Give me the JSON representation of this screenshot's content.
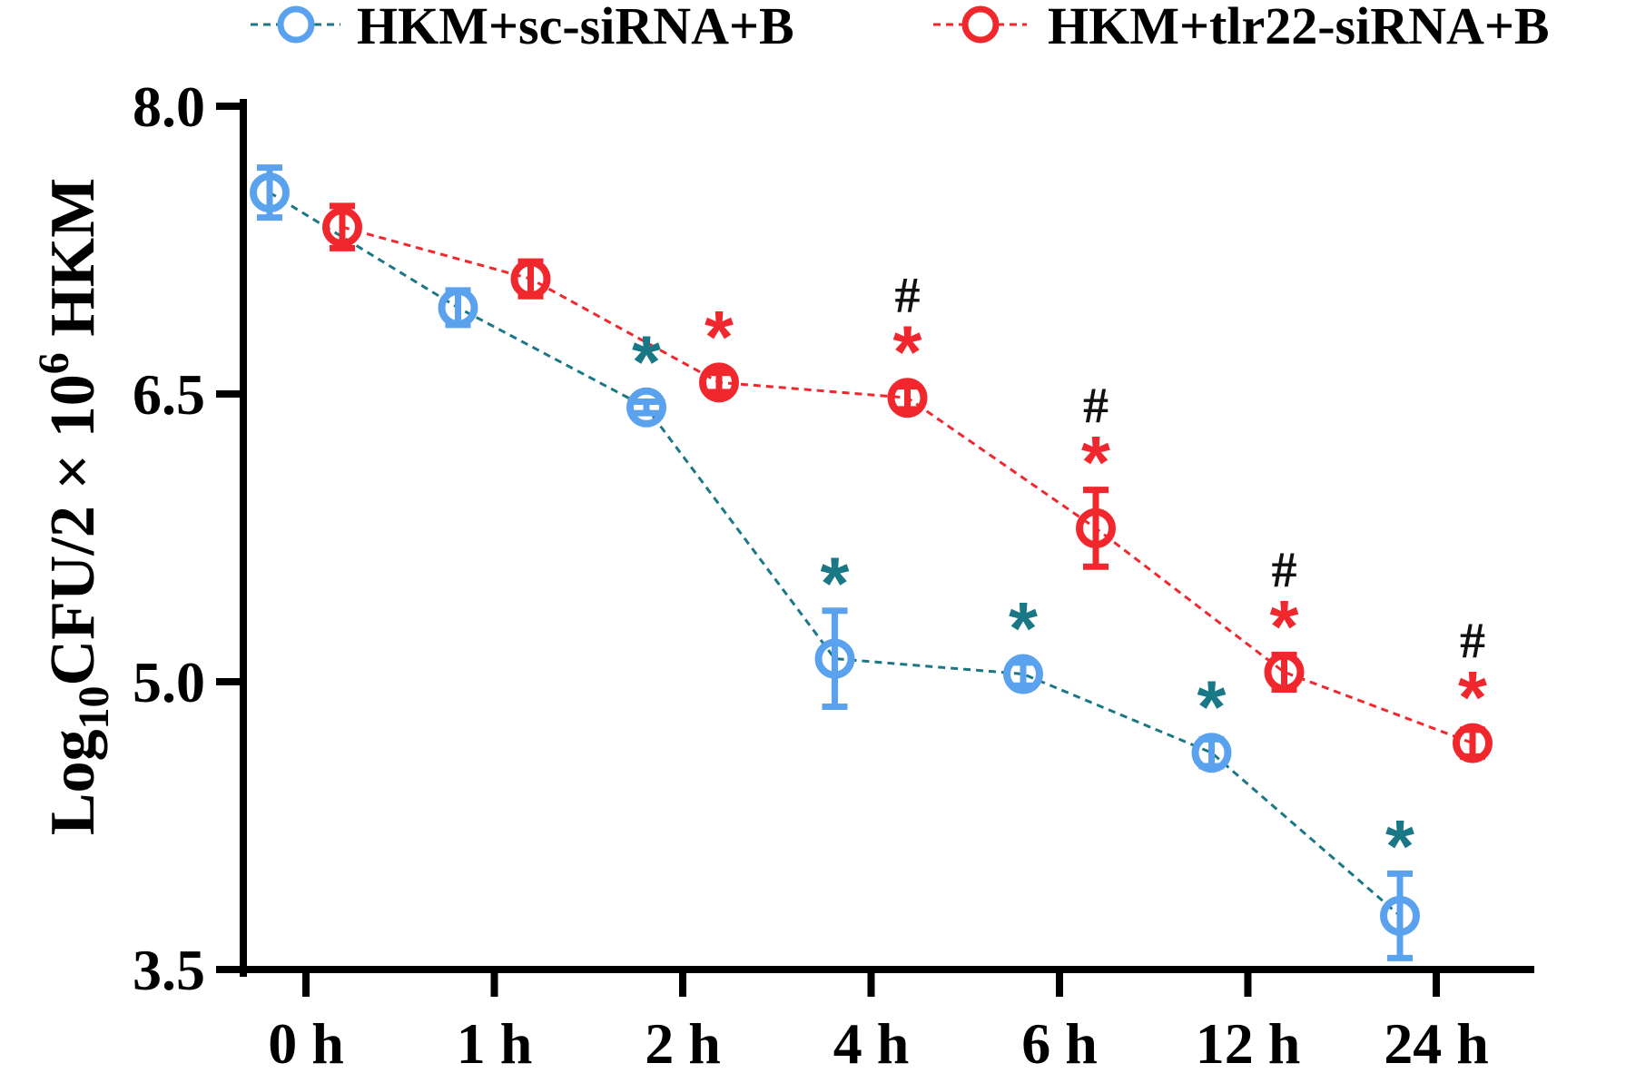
{
  "chart_data": {
    "type": "line",
    "categories": [
      "0 h",
      "1 h",
      "2 h",
      "4 h",
      "6 h",
      "12 h",
      "24 h"
    ],
    "series": [
      {
        "name": "HKM+sc-siRNA+B",
        "color": "#5aa2ee",
        "values": [
          7.55,
          6.95,
          6.43,
          5.12,
          5.04,
          4.63,
          3.78
        ],
        "errors": [
          0.13,
          0.09,
          0.03,
          0.25,
          0.06,
          0.07,
          0.22
        ],
        "annotations": [
          "",
          "",
          "*",
          "*",
          "*",
          "*",
          "*"
        ],
        "annotation_color": "#1a7785"
      },
      {
        "name": "HKM+tlr22-siRNA+B",
        "color": "#f0282d",
        "values": [
          7.37,
          7.1,
          6.56,
          6.48,
          5.8,
          5.05,
          4.68
        ],
        "errors": [
          0.11,
          0.09,
          0.05,
          0.06,
          0.2,
          0.09,
          0.07
        ],
        "annotations": [
          "",
          "",
          "*",
          "*",
          "*",
          "*",
          "*"
        ],
        "annotation_color": "#f0282d",
        "secondary_annotations": [
          "",
          "",
          "",
          "#",
          "#",
          "#",
          "#"
        ]
      }
    ],
    "ylabel": "Log10CFU/2 × 10^6 HKM",
    "ylabel_parts": {
      "log": "Log",
      "log_sub": "10",
      "main": "CFU/2 × 10",
      "exp": "6",
      "tail": " HKM"
    },
    "ylim": [
      3.5,
      8.0
    ],
    "yticks": [
      3.5,
      5.0,
      6.5,
      8.0
    ],
    "ytick_labels": [
      "3.5",
      "5.0",
      "6.5",
      "8.0"
    ],
    "legend_position": "top",
    "line_style": "dashed",
    "grid": false
  }
}
